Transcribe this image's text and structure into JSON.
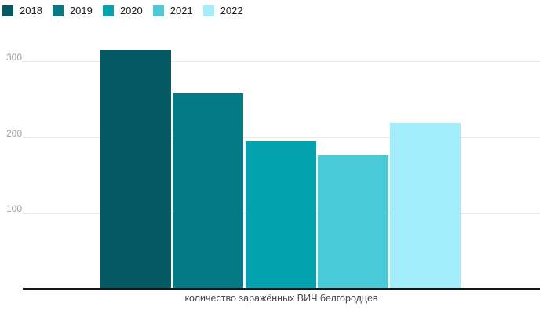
{
  "chart_data": {
    "type": "bar",
    "title": "",
    "categories": [
      "2018",
      "2019",
      "2020",
      "2021",
      "2022"
    ],
    "values": [
      315,
      258,
      195,
      176,
      218
    ],
    "colors": [
      "#045a63",
      "#037a84",
      "#02a3ae",
      "#49cad9",
      "#a3eefb"
    ],
    "xlabel": "количество заражённых ВИЧ белгородцев",
    "ylabel": "",
    "ylim": [
      0,
      350
    ],
    "yticks": [
      100,
      200,
      300
    ],
    "grid": "horizontal",
    "legend_position": "top-left",
    "gridline_color": "#e9e9e9",
    "axis_line_color": "#161616",
    "tick_label_color": "#9e9e9e",
    "legend_text_color": "#1d1d1d",
    "xlabel_color": "#464646"
  }
}
